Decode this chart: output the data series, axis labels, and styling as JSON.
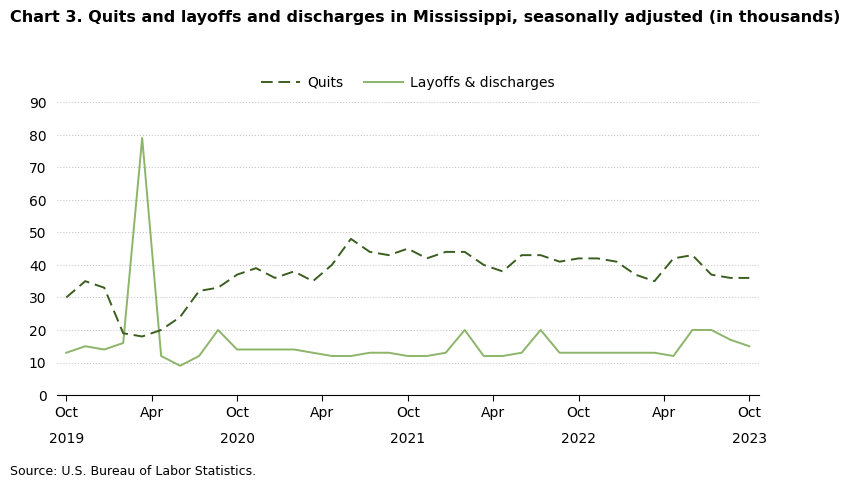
{
  "title": "Chart 3. Quits and layoffs and discharges in Mississippi, seasonally adjusted (in thousands)",
  "source": "Source: U.S. Bureau of Labor Statistics.",
  "quits_label": "Quits",
  "layoffs_label": "Layoffs & discharges",
  "ylim": [
    0,
    90
  ],
  "yticks": [
    0,
    10,
    20,
    30,
    40,
    50,
    60,
    70,
    80,
    90
  ],
  "quits_color": "#3a5e1f",
  "layoffs_color": "#8db56a",
  "background_color": "#ffffff",
  "quits": [
    30,
    35,
    33,
    19,
    18,
    20,
    24,
    32,
    33,
    37,
    39,
    36,
    38,
    35,
    40,
    48,
    44,
    43,
    45,
    42,
    44,
    44,
    40,
    38,
    43,
    43,
    41,
    42,
    42,
    41,
    37,
    35,
    42,
    43,
    37,
    36,
    36
  ],
  "layoffs": [
    13,
    15,
    14,
    16,
    79,
    12,
    9,
    12,
    20,
    14,
    14,
    14,
    14,
    13,
    12,
    12,
    13,
    13,
    12,
    12,
    13,
    20,
    12,
    12,
    13,
    20,
    13,
    13,
    13,
    13,
    13,
    13,
    12,
    20,
    20,
    17,
    15
  ],
  "n_points": 37,
  "title_fontsize": 11.5,
  "legend_fontsize": 10,
  "tick_fontsize": 10,
  "year_fontsize": 10
}
